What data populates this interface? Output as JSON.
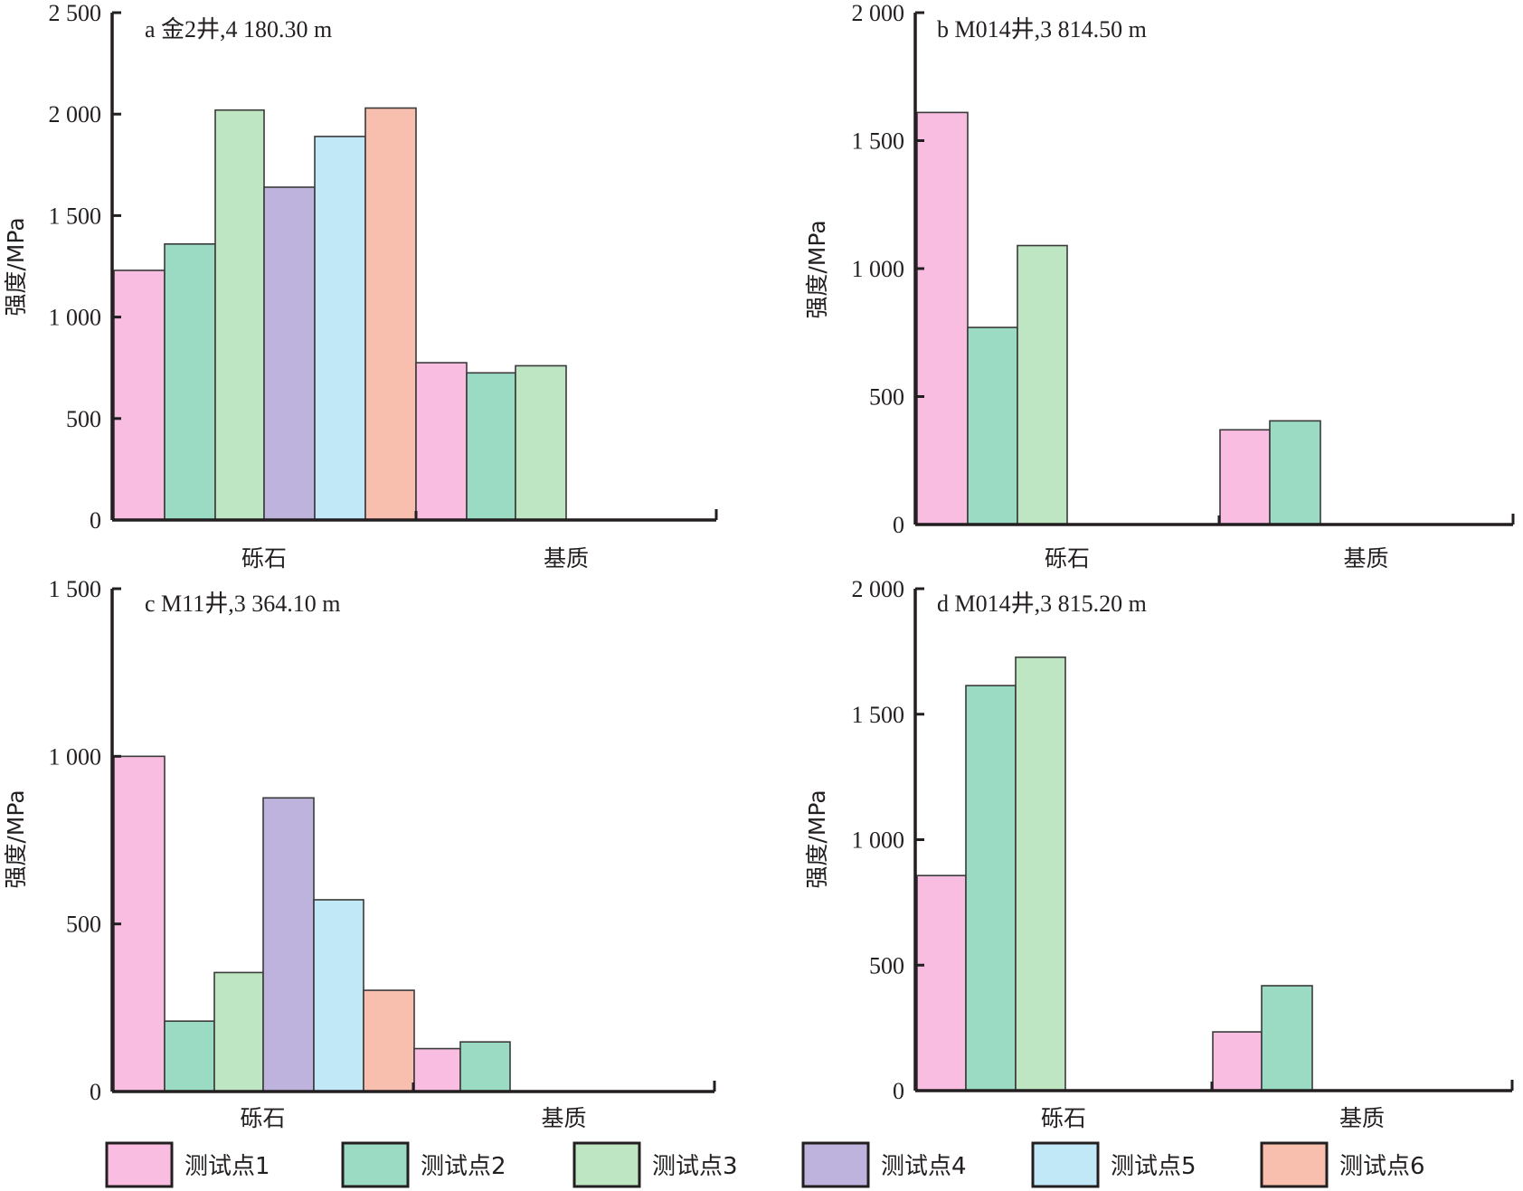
{
  "figure": {
    "series_names": [
      "测试点1",
      "测试点2",
      "测试点3",
      "测试点4",
      "测试点5",
      "测试点6"
    ],
    "series_colors": [
      "#f8bde0",
      "#9bdbc3",
      "#bfe6c2",
      "#beb3dd",
      "#c1e8f7",
      "#f9bfae"
    ],
    "bar_stroke": "#3a3a3a",
    "axis_color": "#231f20"
  },
  "legend": {
    "items": [
      {
        "label": "测试点1",
        "color": "#f8bde0"
      },
      {
        "label": "测试点2",
        "color": "#9bdbc3"
      },
      {
        "label": "测试点3",
        "color": "#bfe6c2"
      },
      {
        "label": "测试点4",
        "color": "#beb3dd"
      },
      {
        "label": "测试点5",
        "color": "#c1e8f7"
      },
      {
        "label": "测试点6",
        "color": "#f9bfae"
      }
    ]
  },
  "chart_data": [
    {
      "type": "bar",
      "panel": "a",
      "title": "a 金2井,4 180.30 m",
      "xlabel": "",
      "ylabel": "强度/MPa",
      "ylim": [
        0,
        2500
      ],
      "yticks": [
        0,
        500,
        1000,
        1500,
        2000,
        2500
      ],
      "ytick_labels": [
        "0",
        "500",
        "1 000",
        "1 500",
        "2 000",
        "2 500"
      ],
      "categories": [
        "砾石",
        "基质"
      ],
      "groups": [
        {
          "category": "砾石",
          "bars": [
            {
              "series": "测试点1",
              "value": 1230
            },
            {
              "series": "测试点2",
              "value": 1360
            },
            {
              "series": "测试点3",
              "value": 2020
            },
            {
              "series": "测试点4",
              "value": 1640
            },
            {
              "series": "测试点5",
              "value": 1890
            },
            {
              "series": "测试点6",
              "value": 2030
            }
          ]
        },
        {
          "category": "基质",
          "bars": [
            {
              "series": "测试点1",
              "value": 775
            },
            {
              "series": "测试点2",
              "value": 725
            },
            {
              "series": "测试点3",
              "value": 760
            }
          ]
        }
      ],
      "grid": false
    },
    {
      "type": "bar",
      "panel": "b",
      "title": "b M014井,3 814.50 m",
      "xlabel": "",
      "ylabel": "强度/MPa",
      "ylim": [
        0,
        2000
      ],
      "yticks": [
        0,
        500,
        1000,
        1500,
        2000
      ],
      "ytick_labels": [
        "0",
        "500",
        "1 000",
        "1 500",
        "2 000"
      ],
      "categories": [
        "砾石",
        "基质"
      ],
      "groups": [
        {
          "category": "砾石",
          "bars": [
            {
              "series": "测试点1",
              "value": 1610
            },
            {
              "series": "测试点2",
              "value": 770
            },
            {
              "series": "测试点3",
              "value": 1090
            }
          ]
        },
        {
          "category": "基质",
          "bars": [
            {
              "series": "测试点1",
              "value": 370
            },
            {
              "series": "测试点2",
              "value": 405
            }
          ]
        }
      ],
      "grid": false
    },
    {
      "type": "bar",
      "panel": "c",
      "title": "c M11井,3 364.10 m",
      "xlabel": "",
      "ylabel": "强度/MPa",
      "ylim": [
        0,
        1500
      ],
      "yticks": [
        0,
        500,
        1000,
        1500
      ],
      "ytick_labels": [
        "0",
        "500",
        "1 000",
        "1 500"
      ],
      "categories": [
        "砾石",
        "基质"
      ],
      "groups": [
        {
          "category": "砾石",
          "bars": [
            {
              "series": "测试点1",
              "value": 1000
            },
            {
              "series": "测试点2",
              "value": 210
            },
            {
              "series": "测试点3",
              "value": 355
            },
            {
              "series": "测试点4",
              "value": 876
            },
            {
              "series": "测试点5",
              "value": 572
            },
            {
              "series": "测试点6",
              "value": 302
            }
          ]
        },
        {
          "category": "基质",
          "bars": [
            {
              "series": "测试点1",
              "value": 128
            },
            {
              "series": "测试点2",
              "value": 148
            }
          ]
        }
      ],
      "grid": false
    },
    {
      "type": "bar",
      "panel": "d",
      "title": "d M014井,3 815.20 m",
      "xlabel": "",
      "ylabel": "强度/MPa",
      "ylim": [
        0,
        2000
      ],
      "yticks": [
        0,
        500,
        1000,
        1500,
        2000
      ],
      "ytick_labels": [
        "0",
        "500",
        "1 000",
        "1 500",
        "2 000"
      ],
      "categories": [
        "砾石",
        "基质"
      ],
      "groups": [
        {
          "category": "砾石",
          "bars": [
            {
              "series": "测试点1",
              "value": 857
            },
            {
              "series": "测试点2",
              "value": 1614
            },
            {
              "series": "测试点3",
              "value": 1727
            }
          ]
        },
        {
          "category": "基质",
          "bars": [
            {
              "series": "测试点1",
              "value": 234
            },
            {
              "series": "测试点2",
              "value": 418
            }
          ]
        }
      ],
      "grid": false
    }
  ]
}
